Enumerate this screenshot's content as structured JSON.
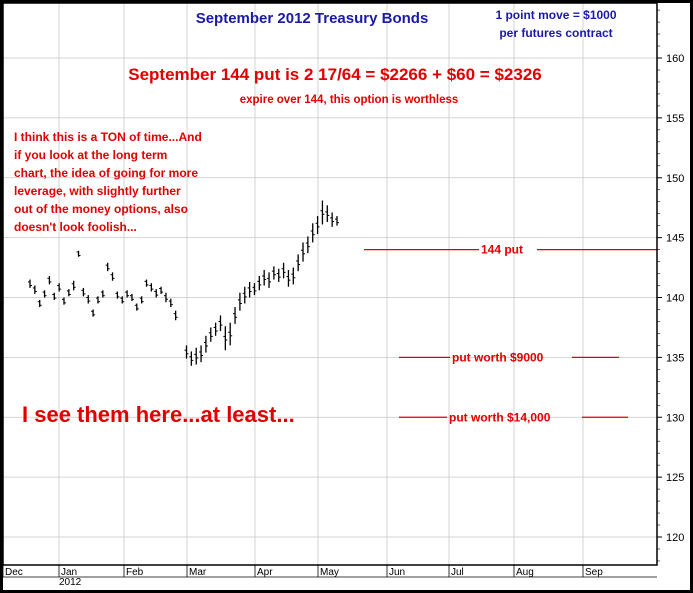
{
  "chart_data": {
    "type": "bar",
    "title": "September 2012 Treasury Bonds",
    "subtitle_lines": [
      "1 point move = $1000",
      "per futures contract"
    ],
    "headline": "September 144 put is 2 17/64 = $2266 + $60 = $2326",
    "subheadline": "expire over 144, this option is worthless",
    "note_lines": [
      "I think this is a TON of time...And",
      "if you look at the long term",
      "chart, the idea of going for more",
      "leverage, with slightly further",
      "out of the money options, also",
      "doesn't look foolish..."
    ],
    "big_note": "I see them here...at least...",
    "ylim": [
      117.5,
      164.5
    ],
    "y_ticks": [
      120,
      125,
      130,
      135,
      140,
      145,
      150,
      155,
      160
    ],
    "x_month_labels": [
      "Dec",
      "Jan",
      "Feb",
      "Mar",
      "Apr",
      "May",
      "Jun",
      "Jul",
      "Aug",
      "Sep"
    ],
    "x_year_label": "2012",
    "grid": true,
    "horizontal_levels": [
      {
        "label": "144 put",
        "y": 144
      },
      {
        "label": "put worth $9000",
        "y": 135
      },
      {
        "label": "put worth $14,000",
        "y": 130
      }
    ],
    "price_bars": [
      {
        "high": 141.5,
        "low": 140.8
      },
      {
        "high": 141.0,
        "low": 140.3
      },
      {
        "high": 139.8,
        "low": 139.2
      },
      {
        "high": 140.6,
        "low": 140.0
      },
      {
        "high": 141.8,
        "low": 141.1
      },
      {
        "high": 140.4,
        "low": 139.8
      },
      {
        "high": 141.2,
        "low": 140.5
      },
      {
        "high": 140.0,
        "low": 139.4
      },
      {
        "high": 140.7,
        "low": 140.1
      },
      {
        "high": 141.4,
        "low": 140.6
      },
      {
        "high": 143.9,
        "low": 143.4
      },
      {
        "high": 140.8,
        "low": 140.1
      },
      {
        "high": 140.2,
        "low": 139.5
      },
      {
        "high": 139.0,
        "low": 138.4
      },
      {
        "high": 140.1,
        "low": 139.5
      },
      {
        "high": 140.6,
        "low": 140.0
      },
      {
        "high": 142.9,
        "low": 142.2
      },
      {
        "high": 142.1,
        "low": 141.4
      },
      {
        "high": 140.5,
        "low": 139.9
      },
      {
        "high": 140.1,
        "low": 139.5
      },
      {
        "high": 140.6,
        "low": 140.0
      },
      {
        "high": 140.3,
        "low": 139.7
      },
      {
        "high": 139.5,
        "low": 138.9
      },
      {
        "high": 140.1,
        "low": 139.5
      },
      {
        "high": 141.5,
        "low": 140.9
      },
      {
        "high": 141.2,
        "low": 140.5
      },
      {
        "high": 140.7,
        "low": 140.0
      },
      {
        "high": 140.9,
        "low": 140.3
      },
      {
        "high": 140.4,
        "low": 139.6
      },
      {
        "high": 139.9,
        "low": 139.2
      },
      {
        "high": 138.9,
        "low": 138.1
      },
      {
        "high": 136.0,
        "low": 134.9
      },
      {
        "high": 135.5,
        "low": 134.3
      },
      {
        "high": 135.8,
        "low": 134.4
      },
      {
        "high": 136.0,
        "low": 134.6
      },
      {
        "high": 136.8,
        "low": 135.4
      },
      {
        "high": 137.5,
        "low": 136.3
      },
      {
        "high": 137.9,
        "low": 136.8
      },
      {
        "high": 138.5,
        "low": 137.2
      },
      {
        "high": 137.6,
        "low": 135.6
      },
      {
        "high": 137.9,
        "low": 136.0
      },
      {
        "high": 139.2,
        "low": 137.8
      },
      {
        "high": 140.4,
        "low": 138.9
      },
      {
        "high": 140.9,
        "low": 139.5
      },
      {
        "high": 141.3,
        "low": 140.0
      },
      {
        "high": 141.2,
        "low": 140.2
      },
      {
        "high": 141.8,
        "low": 140.6
      },
      {
        "high": 142.3,
        "low": 141.0
      },
      {
        "high": 142.1,
        "low": 140.8
      },
      {
        "high": 142.6,
        "low": 141.5
      },
      {
        "high": 142.4,
        "low": 141.3
      },
      {
        "high": 142.9,
        "low": 141.6
      },
      {
        "high": 142.3,
        "low": 140.9
      },
      {
        "high": 142.5,
        "low": 141.1
      },
      {
        "high": 143.6,
        "low": 142.2
      },
      {
        "high": 144.6,
        "low": 143.0
      },
      {
        "high": 145.1,
        "low": 143.7
      },
      {
        "high": 146.2,
        "low": 144.6
      },
      {
        "high": 146.8,
        "low": 145.3
      },
      {
        "high": 148.1,
        "low": 146.1
      },
      {
        "high": 147.7,
        "low": 146.3
      },
      {
        "high": 147.1,
        "low": 145.9
      },
      {
        "high": 146.8,
        "low": 146.0
      }
    ]
  },
  "colors": {
    "background": "#ffffff",
    "frame": "#000000",
    "grid": "#c8c8c8",
    "title": "#1a1aa6",
    "annotation": "#e00000",
    "bars": "#000000"
  }
}
